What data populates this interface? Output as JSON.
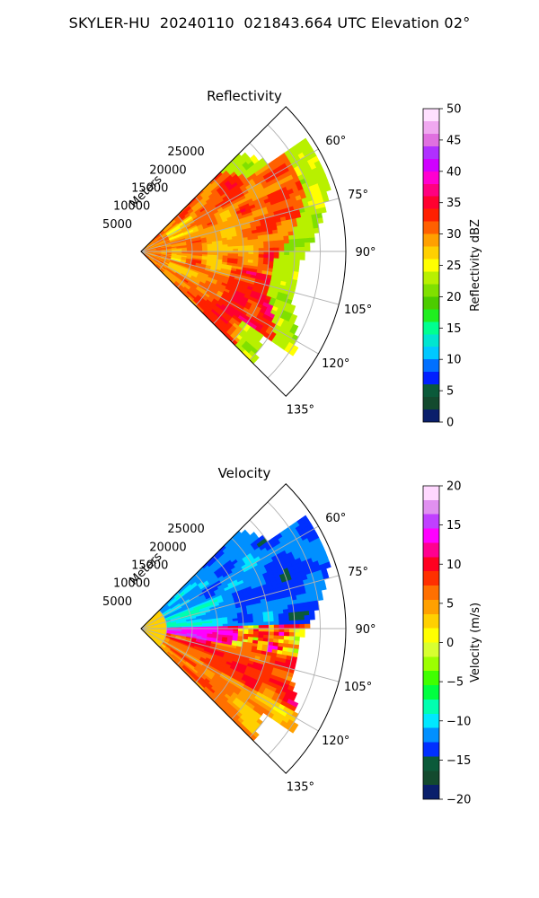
{
  "figure": {
    "title": "SKYLER-HU  20240110  021843.664 UTC Elevation 02°"
  },
  "chart_data": [
    {
      "type": "polar-sector",
      "title": "Reflectivity",
      "radial_axis_label": "Meters",
      "radial_ticks": [
        5000,
        10000,
        15000,
        20000,
        25000
      ],
      "radial_range": [
        0,
        40000
      ],
      "angular_range_deg": [
        45,
        135
      ],
      "angular_ticks_deg": [
        60,
        75,
        90,
        105,
        120,
        135
      ],
      "grid": true,
      "colorbar": {
        "label": "Reflectivity dBZ",
        "range": [
          0,
          50
        ],
        "ticks": [
          0,
          5,
          10,
          15,
          20,
          25,
          30,
          35,
          40,
          45,
          50
        ]
      }
    },
    {
      "type": "polar-sector",
      "title": "Velocity",
      "radial_axis_label": "Meters",
      "radial_ticks": [
        5000,
        10000,
        15000,
        20000,
        25000
      ],
      "radial_range": [
        0,
        40000
      ],
      "angular_range_deg": [
        45,
        135
      ],
      "angular_ticks_deg": [
        60,
        75,
        90,
        105,
        120,
        135
      ],
      "grid": true,
      "colorbar": {
        "label": "Velocity (m/s)",
        "range": [
          -20,
          20
        ],
        "ticks": [
          -20,
          -15,
          -10,
          -5,
          0,
          5,
          10,
          15,
          20
        ]
      }
    }
  ],
  "colormaps": {
    "reflectivity": [
      "#0a1f6b",
      "#134a2e",
      "#0b5a3a",
      "#0020ff",
      "#0070ff",
      "#00c8ff",
      "#00e5d0",
      "#00ff90",
      "#20ee20",
      "#4ccc00",
      "#80e000",
      "#b8f000",
      "#ffff00",
      "#ffd000",
      "#ffa000",
      "#ff6000",
      "#ff2000",
      "#ff0030",
      "#ff0080",
      "#ff00d0",
      "#d000ff",
      "#b030ff",
      "#e070e0",
      "#f0a8f0",
      "#ffe0ff"
    ],
    "velocity": [
      "#0a1f6b",
      "#134a2e",
      "#0b5a3a",
      "#0030ff",
      "#0090ff",
      "#00e8ff",
      "#00ffb0",
      "#00ff40",
      "#40ff00",
      "#9cff00",
      "#d8ff30",
      "#ffff00",
      "#ffd000",
      "#ffa000",
      "#ff7000",
      "#ff3000",
      "#ff0020",
      "#ff0090",
      "#ff00ff",
      "#c040ff",
      "#e090f0",
      "#ffd8ff"
    ]
  }
}
